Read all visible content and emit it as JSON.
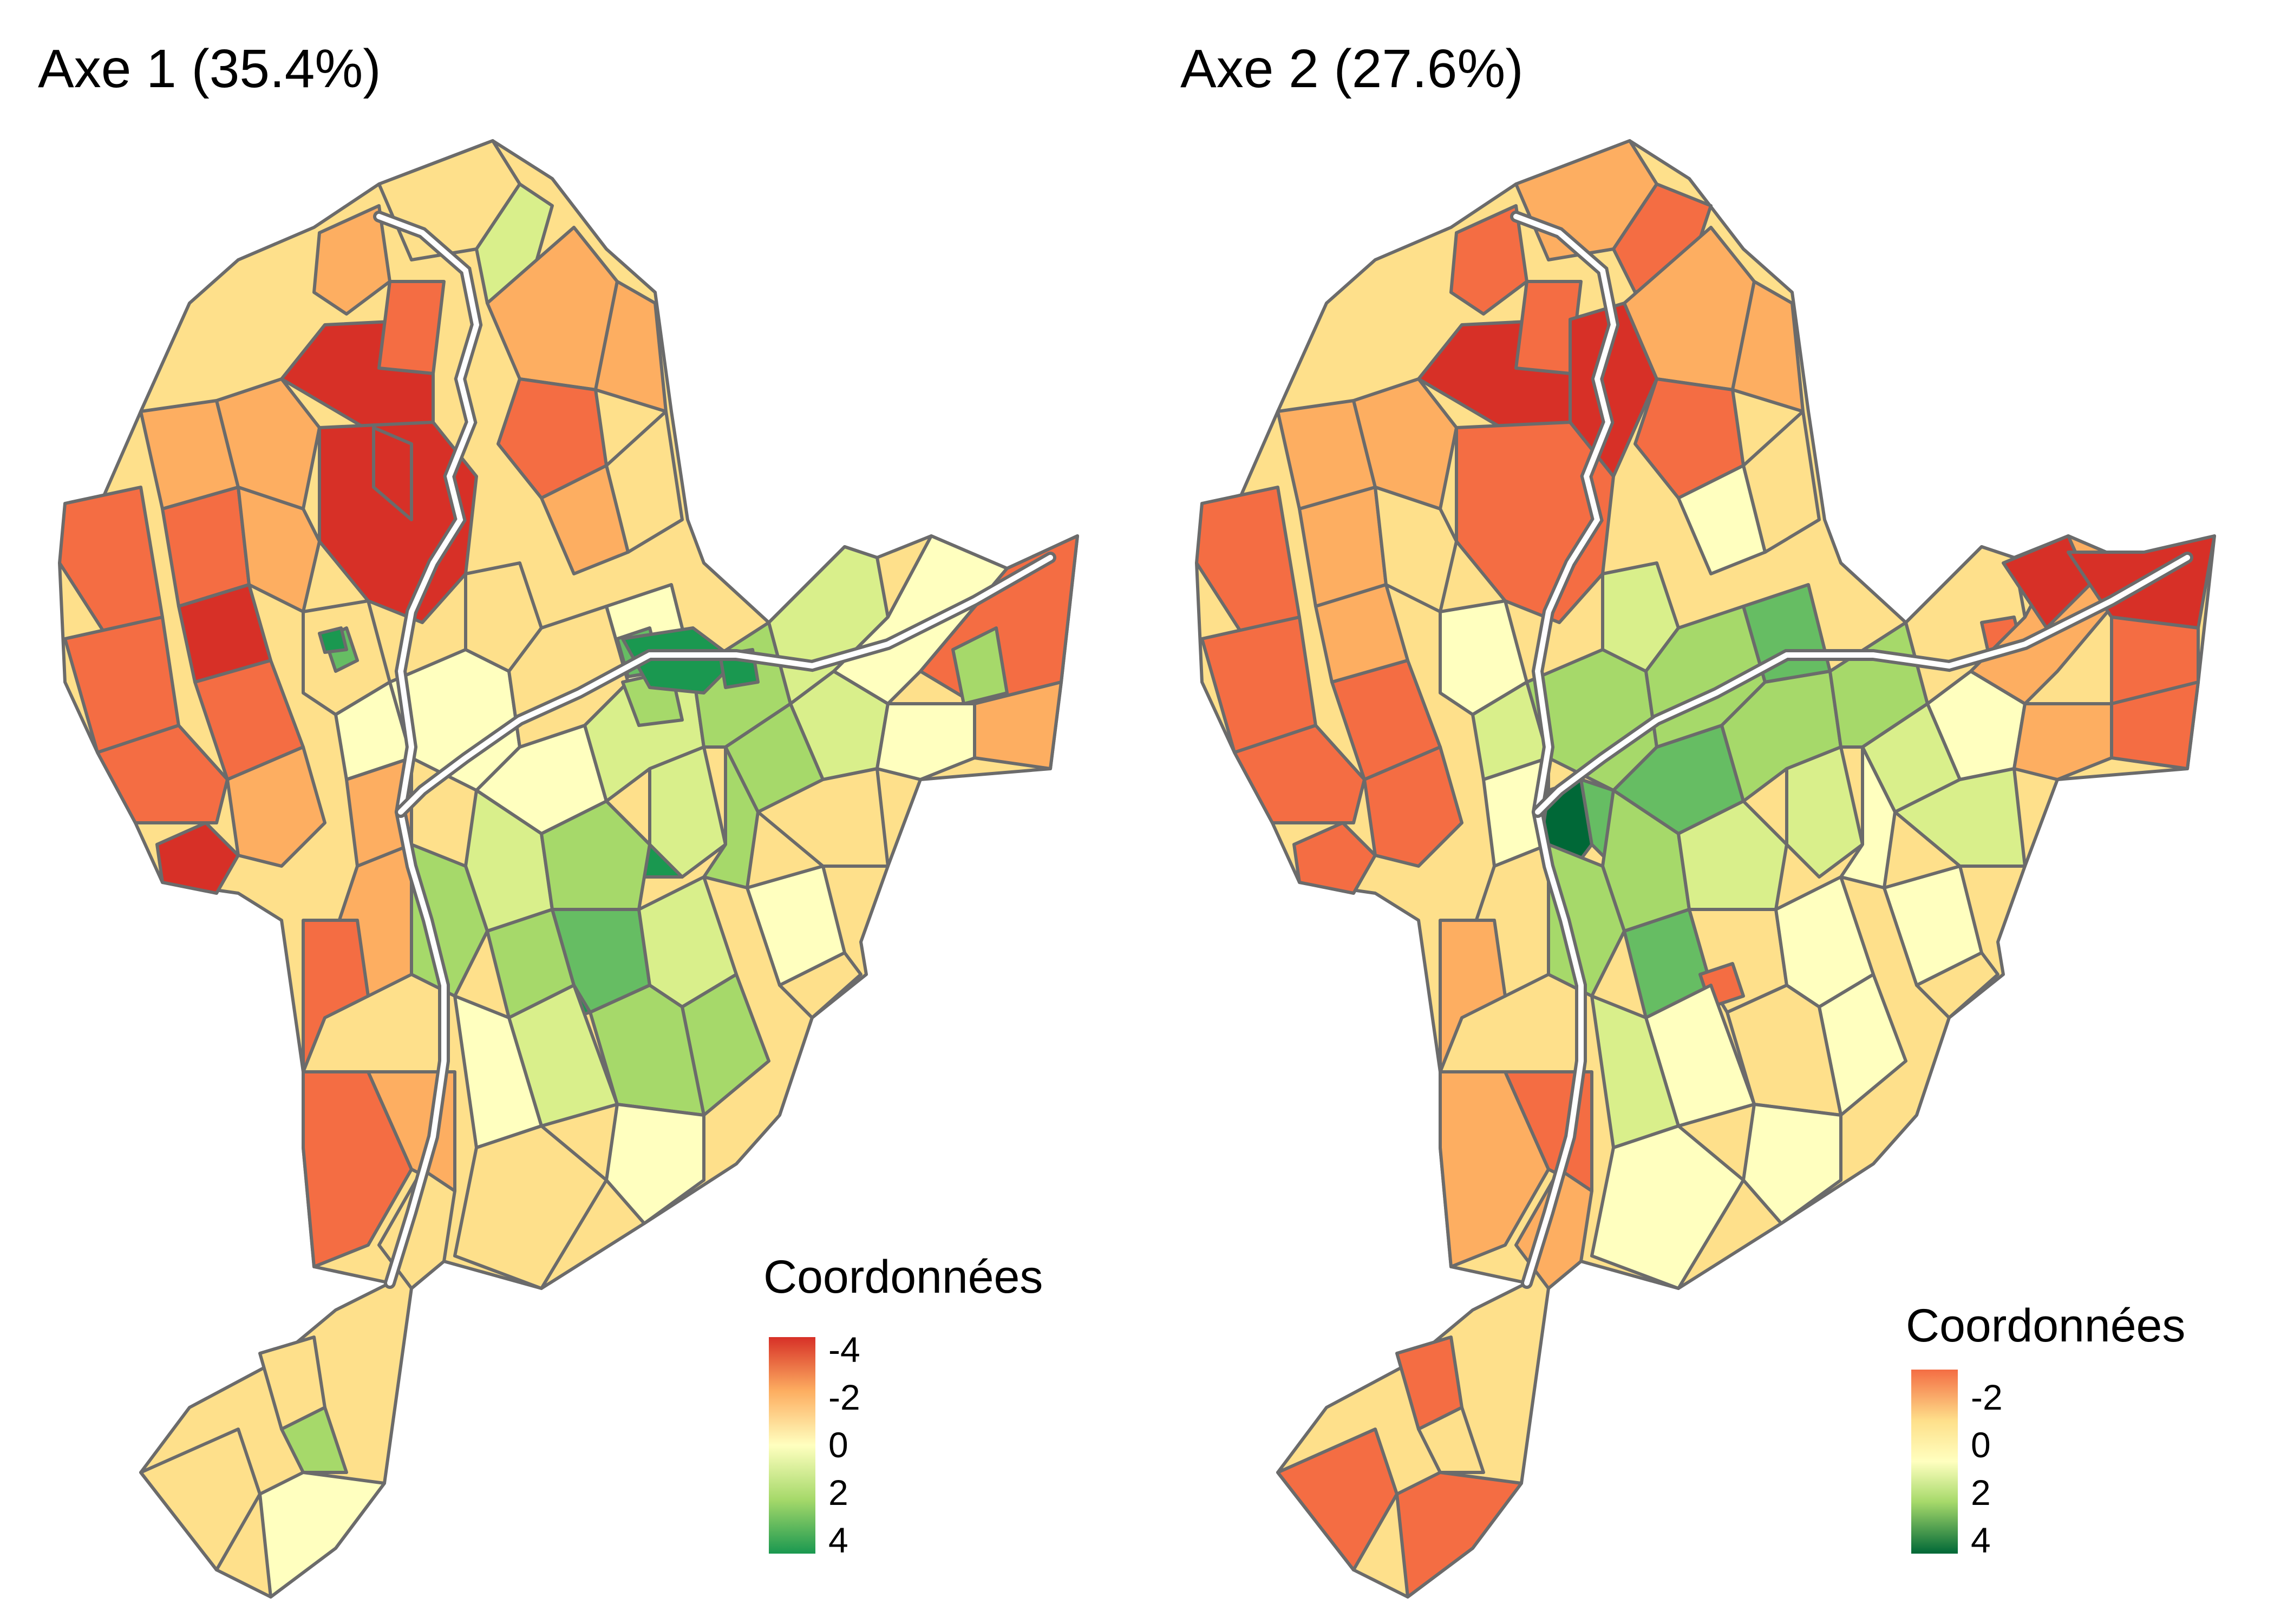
{
  "panels": [
    {
      "title": "Axe 1 (35.4%)",
      "legend": {
        "title": "Coordonnées",
        "ticks": [
          "-4",
          "-2",
          "0",
          "2",
          "4"
        ],
        "colors": [
          "#d73027",
          "#fdae61",
          "#ffffbf",
          "#a6d96a",
          "#1a9850"
        ]
      }
    },
    {
      "title": "Axe 2 (27.6%)",
      "legend": {
        "title": "Coordonnées",
        "ticks": [
          "-2",
          "0",
          "2",
          "4"
        ],
        "colors": [
          "#f46d43",
          "#fee08b",
          "#ffffbf",
          "#a6d96a",
          "#006837"
        ]
      }
    }
  ],
  "colors": {
    "border": "#6b6b6b",
    "river": "#6b6b6b",
    "red": "#d73027",
    "orange": "#f46d43",
    "light_orange": "#fdae61",
    "pale": "#fee08b",
    "cream": "#ffffbf",
    "light_green": "#d9ef8b",
    "green": "#a6d96a",
    "mid_green": "#66bd63",
    "dark_green": "#1a9850"
  }
}
